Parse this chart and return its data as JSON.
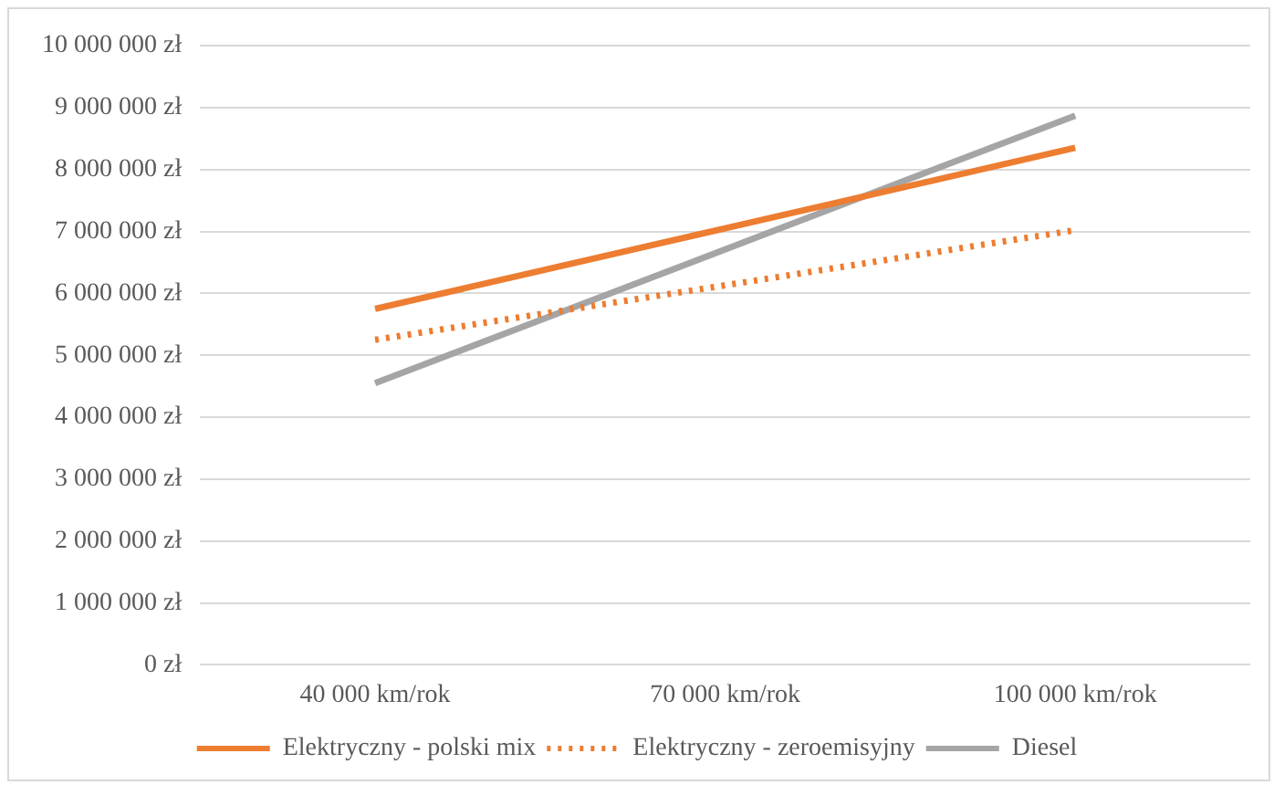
{
  "chart_data": {
    "type": "line",
    "categories": [
      "40 000 km/rok",
      "70 000 km/rok",
      "100 000 km/rok"
    ],
    "series": [
      {
        "name": "Elektryczny - polski mix",
        "color": "#ed7d31",
        "values": [
          5750000,
          7050000,
          8350000
        ],
        "line_style": "solid"
      },
      {
        "name": "Elektryczny - zeroemisyjny",
        "color": "#ed7d31",
        "values": [
          5250000,
          6130000,
          7020000
        ],
        "line_style": "dotted"
      },
      {
        "name": "Diesel",
        "color": "#a5a5a5",
        "values": [
          4550000,
          6710000,
          8870000
        ],
        "line_style": "solid"
      }
    ],
    "ylim": [
      0,
      10000000
    ],
    "yticks": [
      {
        "value": 0,
        "label": "0 zł"
      },
      {
        "value": 1000000,
        "label": "1 000 000 zł"
      },
      {
        "value": 2000000,
        "label": "2 000 000 zł"
      },
      {
        "value": 3000000,
        "label": "3 000 000 zł"
      },
      {
        "value": 4000000,
        "label": "4 000 000 zł"
      },
      {
        "value": 5000000,
        "label": "5 000 000 zł"
      },
      {
        "value": 6000000,
        "label": "6 000 000 zł"
      },
      {
        "value": 7000000,
        "label": "7 000 000 zł"
      },
      {
        "value": 8000000,
        "label": "8 000 000 zł"
      },
      {
        "value": 9000000,
        "label": "9 000 000 zł"
      },
      {
        "value": 10000000,
        "label": "10 000 000 zł"
      }
    ],
    "grid": "y",
    "legend": "bottom",
    "marker": "none"
  }
}
